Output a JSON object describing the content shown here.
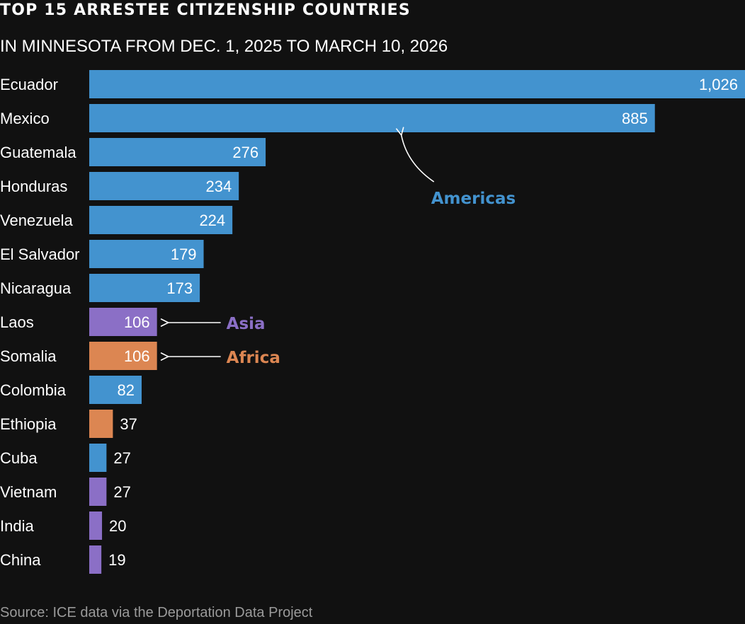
{
  "header": {
    "title": "TOP 15 ARRESTEE CITIZENSHIP COUNTRIES",
    "subtitle": "IN MINNESOTA FROM DEC. 1, 2025 TO MARCH 10, 2026"
  },
  "footer": {
    "source": "Source: ICE data via the Deportation Data Project"
  },
  "colors": {
    "background": "#111111",
    "americas": "#4393cf",
    "asia": "#8b6fc6",
    "africa": "#dc8652",
    "text": "#ffffff",
    "source_text": "#9a9a9a"
  },
  "chart_data": {
    "type": "bar",
    "orientation": "horizontal",
    "title": "TOP 15 ARRESTEE CITIZENSHIP COUNTRIES",
    "subtitle": "IN MINNESOTA FROM DEC. 1, 2025 TO MARCH 10, 2026",
    "xlabel": "",
    "ylabel": "",
    "xlim": [
      0,
      1026
    ],
    "grid": false,
    "categories": [
      "Ecuador",
      "Mexico",
      "Guatemala",
      "Honduras",
      "Venezuela",
      "El Salvador",
      "Nicaragua",
      "Laos",
      "Somalia",
      "Colombia",
      "Ethiopia",
      "Cuba",
      "Vietnam",
      "India",
      "China"
    ],
    "values": [
      1026,
      885,
      276,
      234,
      224,
      179,
      173,
      106,
      106,
      82,
      37,
      27,
      27,
      20,
      19
    ],
    "value_labels": [
      "1,026",
      "885",
      "276",
      "234",
      "224",
      "179",
      "173",
      "106",
      "106",
      "82",
      "37",
      "27",
      "27",
      "20",
      "19"
    ],
    "regions": [
      "Americas",
      "Americas",
      "Americas",
      "Americas",
      "Americas",
      "Americas",
      "Americas",
      "Asia",
      "Africa",
      "Americas",
      "Africa",
      "Americas",
      "Asia",
      "Asia",
      "Asia"
    ],
    "annotations": [
      {
        "text": "Americas",
        "region": "Americas",
        "points_to": "Mexico"
      },
      {
        "text": "Asia",
        "region": "Asia",
        "points_to": "Laos"
      },
      {
        "text": "Africa",
        "region": "Africa",
        "points_to": "Somalia"
      }
    ]
  }
}
